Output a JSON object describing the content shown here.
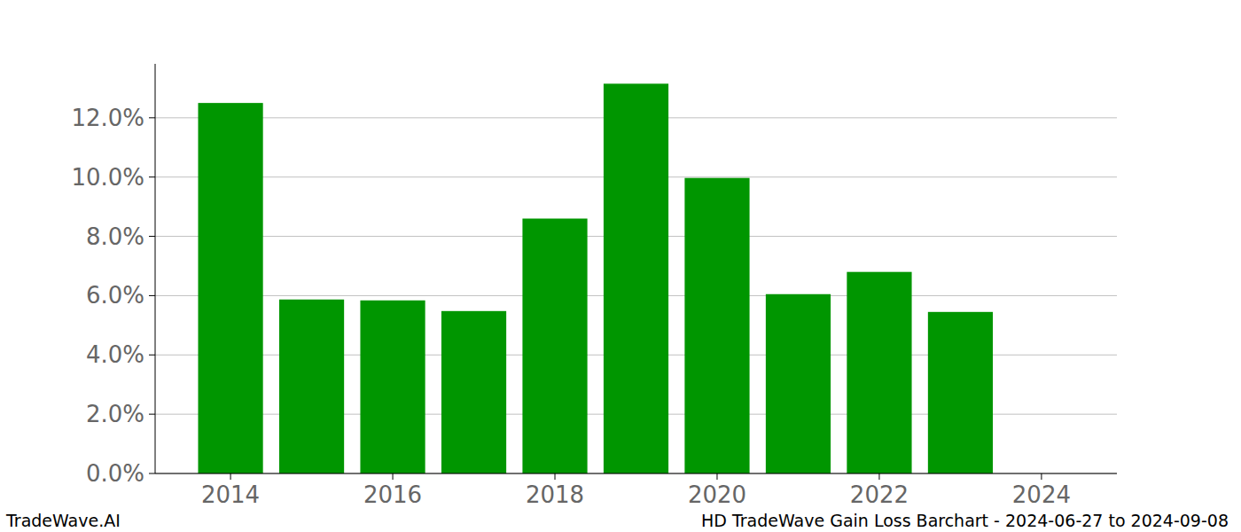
{
  "chart_data": {
    "type": "bar",
    "title": "HD TradeWave Gain Loss Barchart - 2024-06-27 to 2024-09-08",
    "credit": "TradeWave.AI",
    "x": [
      2014,
      2015,
      2016,
      2017,
      2018,
      2019,
      2020,
      2021,
      2022,
      2023
    ],
    "values": [
      12.5,
      5.87,
      5.84,
      5.48,
      8.6,
      13.15,
      9.97,
      6.05,
      6.8,
      5.45
    ],
    "color": "#009600",
    "xlim": [
      2013.07,
      2024.93
    ],
    "xticks": [
      2014,
      2016,
      2018,
      2020,
      2022,
      2024
    ],
    "ylim": [
      0,
      13.82
    ],
    "yticks": [
      {
        "value": 0,
        "label": "0.0%"
      },
      {
        "value": 2,
        "label": "2.0%"
      },
      {
        "value": 4,
        "label": "4.0%"
      },
      {
        "value": 6,
        "label": "6.0%"
      },
      {
        "value": 8,
        "label": "8.0%"
      },
      {
        "value": 10,
        "label": "10.0%"
      },
      {
        "value": 12,
        "label": "12.0%"
      }
    ],
    "grid": true
  }
}
